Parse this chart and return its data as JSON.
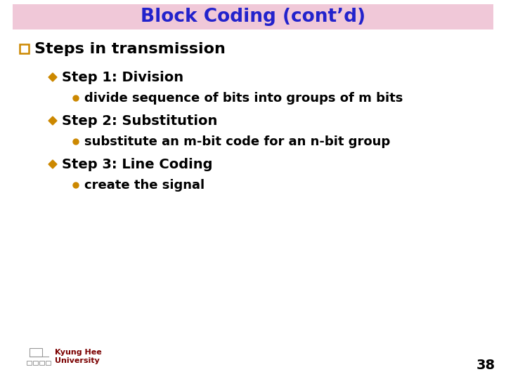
{
  "title": "Block Coding (cont’d)",
  "title_color": "#2222CC",
  "title_bg_color": "#F0C8D8",
  "bg_color": "#FFFFFF",
  "diamond_color": "#CC8800",
  "sub_bullet_color": "#CC8800",
  "main_square_color": "#CC8800",
  "main_heading": "Steps in transmission",
  "main_heading_color": "#000000",
  "items": [
    {
      "level": 1,
      "text": "Step 1: Division",
      "color": "#000000"
    },
    {
      "level": 2,
      "text": "divide sequence of bits into groups of m bits",
      "color": "#000000"
    },
    {
      "level": 1,
      "text": "Step 2: Substitution",
      "color": "#000000"
    },
    {
      "level": 2,
      "text": "substitute an m-bit code for an n-bit group",
      "color": "#000000"
    },
    {
      "level": 1,
      "text": "Step 3: Line Coding",
      "color": "#000000"
    },
    {
      "level": 2,
      "text": "create the signal",
      "color": "#000000"
    }
  ],
  "footer_text_line1": "Kyung Hee",
  "footer_text_line2": "University",
  "footer_color": "#7B0000",
  "page_number": "38",
  "page_number_color": "#000000",
  "title_fontsize": 19,
  "heading_fontsize": 16,
  "level1_fontsize": 14,
  "level2_fontsize": 13
}
